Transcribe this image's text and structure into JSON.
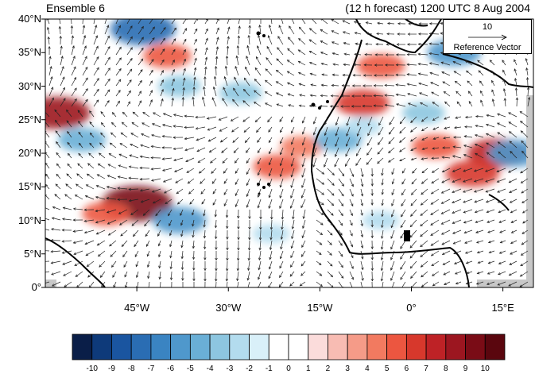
{
  "title": {
    "left": "Ensemble 6",
    "right": "(12 h forecast) 1200 UTC 8 Aug 2004"
  },
  "reference_vector": {
    "value": "10",
    "label": "Reference Vector"
  },
  "lat_labels": [
    "40°N",
    "35°N",
    "30°N",
    "25°N",
    "20°N",
    "15°N",
    "10°N",
    "5°N",
    "0°"
  ],
  "lon_labels": [
    "45°W",
    "30°W",
    "15°W",
    "0°",
    "15°E"
  ],
  "colorbar": {
    "labels": [
      "-10",
      "-9",
      "-8",
      "-7",
      "-6",
      "-5",
      "-4",
      "-3",
      "-2",
      "-1",
      "0",
      "1",
      "2",
      "3",
      "4",
      "5",
      "6",
      "7",
      "8",
      "9",
      "10"
    ],
    "colors": [
      "#0a1e48",
      "#0e3a7a",
      "#1a55a0",
      "#2a6db3",
      "#3a84c2",
      "#4f98cc",
      "#6aafd6",
      "#8dc6e0",
      "#b3dcee",
      "#d9f0f9",
      "#ffffff",
      "#ffffff",
      "#fbdcdb",
      "#f8bcb3",
      "#f59b88",
      "#f27a60",
      "#ec5640",
      "#d7382c",
      "#be2226",
      "#9c1620",
      "#7a0c16",
      "#5a060e"
    ]
  },
  "map_data": {
    "extent": {
      "lon": [
        -60,
        20
      ],
      "lat": [
        0,
        40
      ]
    },
    "field": "contoured anomaly with overlaid wind vectors",
    "anomalies": [
      {
        "lon": -45,
        "lat": 12.5,
        "value": 9
      },
      {
        "lon": -50,
        "lat": 11,
        "value": 5
      },
      {
        "lon": -58,
        "lat": 26,
        "value": 8
      },
      {
        "lon": -40,
        "lat": 34.5,
        "value": 5
      },
      {
        "lon": -22,
        "lat": 18,
        "value": 5
      },
      {
        "lon": -18,
        "lat": 21,
        "value": 4
      },
      {
        "lon": -8,
        "lat": 27.5,
        "value": 6
      },
      {
        "lon": -5,
        "lat": 33,
        "value": 5
      },
      {
        "lon": 14,
        "lat": 20,
        "value": 7
      },
      {
        "lon": 10,
        "lat": 17,
        "value": 6
      },
      {
        "lon": 4,
        "lat": 21,
        "value": 5
      },
      {
        "lon": -44,
        "lat": 38.5,
        "value": -8
      },
      {
        "lon": -38,
        "lat": 10,
        "value": -6
      },
      {
        "lon": -54,
        "lat": 22,
        "value": -5
      },
      {
        "lon": -38,
        "lat": 30,
        "value": -4
      },
      {
        "lon": -28,
        "lat": 29,
        "value": -4
      },
      {
        "lon": -12,
        "lat": 22,
        "value": -5
      },
      {
        "lon": 7,
        "lat": 35,
        "value": -6
      },
      {
        "lon": 17,
        "lat": 20,
        "value": -6
      },
      {
        "lon": -8,
        "lat": 24,
        "value": -3
      },
      {
        "lon": 2,
        "lat": 26,
        "value": -4
      },
      {
        "lon": -23,
        "lat": 8,
        "value": -3
      },
      {
        "lon": -5,
        "lat": 10,
        "value": -3
      }
    ]
  }
}
